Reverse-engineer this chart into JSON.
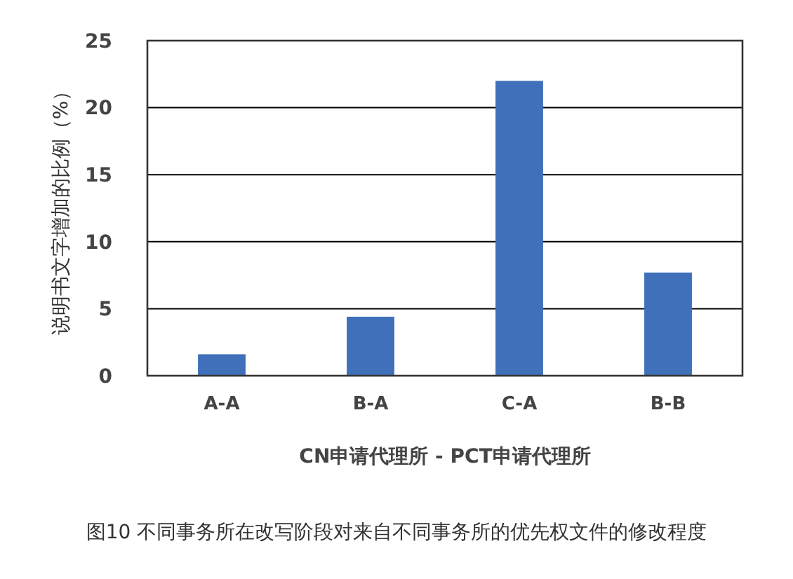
{
  "chart_data": {
    "type": "bar",
    "title": "图10 不同事务所在改写阶段对来自不同事务所的优先权文件的修改程度",
    "xlabel": "CN申请代理所 - PCT申请代理所",
    "ylabel": "说明书文字增加的比例（%）",
    "categories": [
      "A-A",
      "B-A",
      "C-A",
      "B-B"
    ],
    "values": [
      1.6,
      4.4,
      22.0,
      7.7
    ],
    "color": "#3f70b9",
    "ylim": [
      0,
      25
    ],
    "yticks": [
      0,
      5,
      10,
      15,
      20,
      25
    ],
    "grid": "y"
  }
}
